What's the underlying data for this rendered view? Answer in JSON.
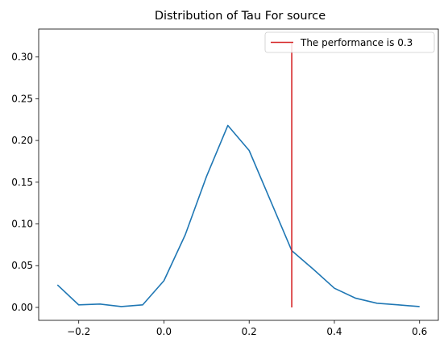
{
  "chart_data": {
    "type": "line",
    "title": "Distribution of Tau For source",
    "xlabel": "",
    "ylabel": "",
    "xlim": [
      -0.294,
      0.644
    ],
    "ylim": [
      -0.0155,
      0.3335
    ],
    "xticks": [
      -0.2,
      0.0,
      0.2,
      0.4,
      0.6
    ],
    "xtick_labels": [
      "−0.2",
      "0.0",
      "0.2",
      "0.4",
      "0.6"
    ],
    "yticks": [
      0.0,
      0.05,
      0.1,
      0.15,
      0.2,
      0.25,
      0.3
    ],
    "ytick_labels": [
      "0.00",
      "0.05",
      "0.10",
      "0.15",
      "0.20",
      "0.25",
      "0.30"
    ],
    "grid": false,
    "legend_position": "top-right",
    "series": [
      {
        "color": "#1f77b4",
        "x": [
          -0.25,
          -0.2,
          -0.15,
          -0.1,
          -0.05,
          0.0,
          0.05,
          0.1,
          0.15,
          0.2,
          0.25,
          0.3,
          0.35,
          0.4,
          0.45,
          0.5,
          0.55,
          0.6
        ],
        "y": [
          0.027,
          0.003,
          0.004,
          0.001,
          0.003,
          0.032,
          0.087,
          0.157,
          0.218,
          0.188,
          0.128,
          0.068,
          0.046,
          0.023,
          0.011,
          0.005,
          0.003,
          0.001
        ]
      }
    ],
    "vline": {
      "x": 0.3,
      "y_range": [
        0.0,
        0.318
      ],
      "color": "#d62728",
      "label": "The performance is 0.3"
    }
  }
}
